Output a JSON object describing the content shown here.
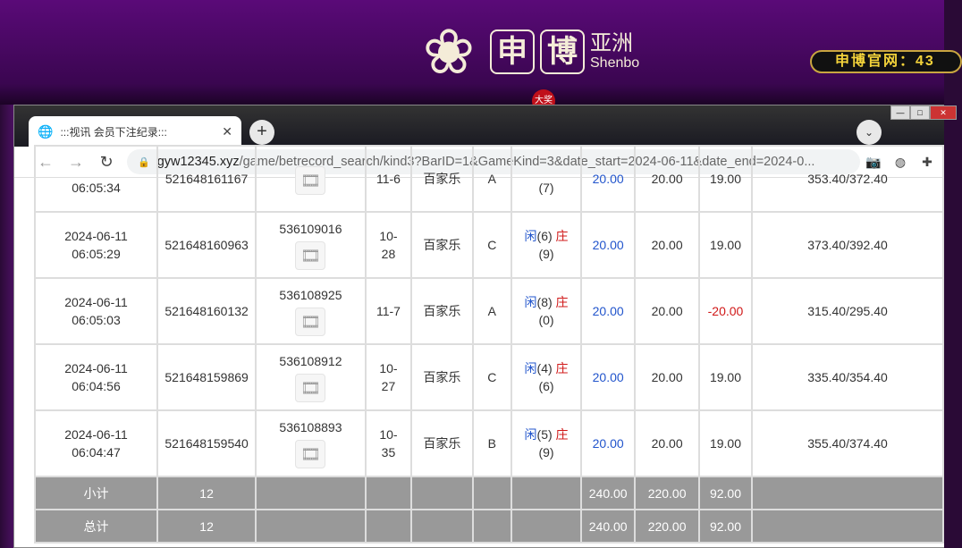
{
  "site": {
    "logo_chars": [
      "申",
      "博"
    ],
    "logo_side": "亚洲",
    "logo_en": "Shenbo",
    "badge": "大奖",
    "official_site": "申博官网：43"
  },
  "browser": {
    "tab_title": ":::视讯 会员下注纪录:::",
    "url_host": "gyw12345.xyz",
    "url_path": "/game/betrecord_search/kind3?BarID=1&GameKind=3&date_start=2024-06-11&date_end=2024-0..."
  },
  "rows": [
    {
      "date": "",
      "time": "06:05:34",
      "bet_id": "521648161167",
      "round_id": "",
      "shoe": "11-6",
      "game": "百家乐",
      "table": "A",
      "player_label": "",
      "player": "",
      "banker_label": "",
      "banker": "(7)",
      "bet": "20.00",
      "valid": "20.00",
      "result": "19.00",
      "result_negative": false,
      "balance": "353.40/372.40"
    },
    {
      "date": "2024-06-11",
      "time": "06:05:29",
      "bet_id": "521648160963",
      "round_id": "536109016",
      "shoe": "10-28",
      "game": "百家乐",
      "table": "C",
      "player_label": "闲",
      "player": "(6)",
      "banker_label": "庄",
      "banker": "(9)",
      "bet": "20.00",
      "valid": "20.00",
      "result": "19.00",
      "result_negative": false,
      "balance": "373.40/392.40"
    },
    {
      "date": "2024-06-11",
      "time": "06:05:03",
      "bet_id": "521648160132",
      "round_id": "536108925",
      "shoe": "11-7",
      "game": "百家乐",
      "table": "A",
      "player_label": "闲",
      "player": "(8)",
      "banker_label": "庄",
      "banker": "(0)",
      "bet": "20.00",
      "valid": "20.00",
      "result": "-20.00",
      "result_negative": true,
      "balance": "315.40/295.40"
    },
    {
      "date": "2024-06-11",
      "time": "06:04:56",
      "bet_id": "521648159869",
      "round_id": "536108912",
      "shoe": "10-27",
      "game": "百家乐",
      "table": "C",
      "player_label": "闲",
      "player": "(4)",
      "banker_label": "庄",
      "banker": "(6)",
      "bet": "20.00",
      "valid": "20.00",
      "result": "19.00",
      "result_negative": false,
      "balance": "335.40/354.40"
    },
    {
      "date": "2024-06-11",
      "time": "06:04:47",
      "bet_id": "521648159540",
      "round_id": "536108893",
      "shoe": "10-35",
      "game": "百家乐",
      "table": "B",
      "player_label": "闲",
      "player": "(5)",
      "banker_label": "庄",
      "banker": "(9)",
      "bet": "20.00",
      "valid": "20.00",
      "result": "19.00",
      "result_negative": false,
      "balance": "355.40/374.40"
    }
  ],
  "subtotal": {
    "label": "小计",
    "count": "12",
    "bet": "240.00",
    "valid": "220.00",
    "result": "92.00"
  },
  "total": {
    "label": "总计",
    "count": "12",
    "bet": "240.00",
    "valid": "220.00",
    "result": "92.00"
  },
  "colors": {
    "player": "#2255cc",
    "banker": "#d01818",
    "summary_bg": "#999999"
  }
}
